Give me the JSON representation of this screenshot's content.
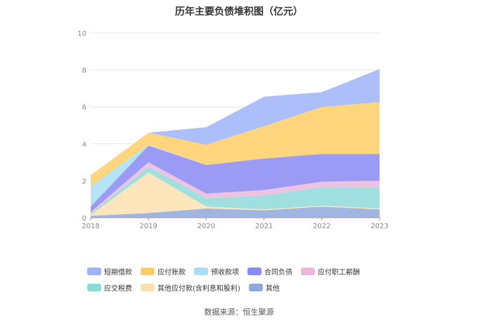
{
  "chart_data": {
    "type": "area",
    "stacked": true,
    "title": "历年主要负债堆积图（亿元）",
    "x": [
      "2018",
      "2019",
      "2020",
      "2021",
      "2022",
      "2023"
    ],
    "ylim": [
      0,
      10
    ],
    "yticks": [
      0,
      2,
      4,
      6,
      8,
      10
    ],
    "grid": true,
    "legend_position": "bottom",
    "series": [
      {
        "name": "其他",
        "color": "#8fa8db",
        "values": [
          0.1,
          0.25,
          0.5,
          0.4,
          0.6,
          0.45
        ]
      },
      {
        "name": "其他应付款(含利息和股利)",
        "color": "#fde0b0",
        "values": [
          0.05,
          2.2,
          0.1,
          0.05,
          0.05,
          0.05
        ]
      },
      {
        "name": "应交税费",
        "color": "#8fd9d9",
        "values": [
          0.05,
          0.3,
          0.45,
          0.75,
          1.0,
          1.15
        ]
      },
      {
        "name": "应付职工薪酬",
        "color": "#eab8dc",
        "values": [
          0.1,
          0.25,
          0.25,
          0.3,
          0.3,
          0.35
        ]
      },
      {
        "name": "合同负债",
        "color": "#8a8af5",
        "values": [
          0.3,
          0.9,
          1.55,
          1.7,
          1.5,
          1.45
        ]
      },
      {
        "name": "预收款项",
        "color": "#a8def7",
        "values": [
          1.1,
          0.05,
          0,
          0,
          0,
          0
        ]
      },
      {
        "name": "应付账款",
        "color": "#ffcf66",
        "values": [
          0.6,
          0.65,
          1.1,
          1.75,
          2.55,
          2.8
        ]
      },
      {
        "name": "短期借款",
        "color": "#9db4fa",
        "values": [
          0,
          0,
          0.95,
          1.6,
          0.8,
          1.8
        ]
      }
    ],
    "legend_order": [
      "短期借款",
      "应付账款",
      "预收款项",
      "合同负债",
      "应付职工薪酬",
      "应交税费",
      "其他应付款(含利息和股利)",
      "其他"
    ]
  },
  "source_text": "数据来源：恒生聚源"
}
